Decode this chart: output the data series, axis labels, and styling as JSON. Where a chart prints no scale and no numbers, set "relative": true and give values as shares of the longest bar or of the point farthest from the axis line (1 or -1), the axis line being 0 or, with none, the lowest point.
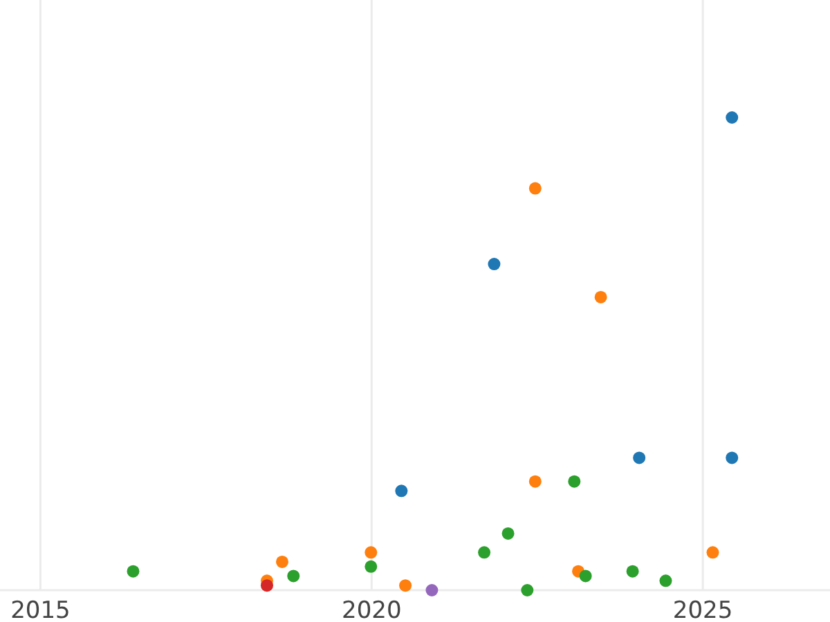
{
  "chart_data": {
    "type": "scatter",
    "relative": true,
    "xlim": [
      2014.39,
      2026.92
    ],
    "xticks": [
      2015,
      2020,
      2025
    ],
    "grid": "x",
    "marker": "circle",
    "series": [
      {
        "color": "#1f77b4",
        "x": [
          2025.44,
          2021.85,
          2020.45,
          2024.04,
          2025.44
        ],
        "values": [
          1.0,
          0.69,
          0.21,
          0.28,
          0.28
        ]
      },
      {
        "color": "#ff7f0e",
        "x": [
          2022.47,
          2023.46,
          2022.47,
          2018.65,
          2019.99,
          2018.42,
          2020.51,
          2023.12,
          2025.15
        ],
        "values": [
          0.85,
          0.62,
          0.23,
          0.06,
          0.08,
          0.02,
          0.01,
          0.04,
          0.08
        ]
      },
      {
        "color": "#2ca02c",
        "x": [
          2016.4,
          2018.82,
          2019.99,
          2021.7,
          2022.06,
          2023.06,
          2022.35,
          2023.23,
          2023.94,
          2024.44
        ],
        "values": [
          0.04,
          0.03,
          0.05,
          0.08,
          0.12,
          0.23,
          0.0,
          0.03,
          0.04,
          0.02
        ]
      },
      {
        "color": "#d62728",
        "x": [
          2018.42
        ],
        "values": [
          0.01
        ]
      },
      {
        "color": "#9467bd",
        "x": [
          2020.91
        ],
        "values": [
          0.0
        ]
      }
    ]
  }
}
